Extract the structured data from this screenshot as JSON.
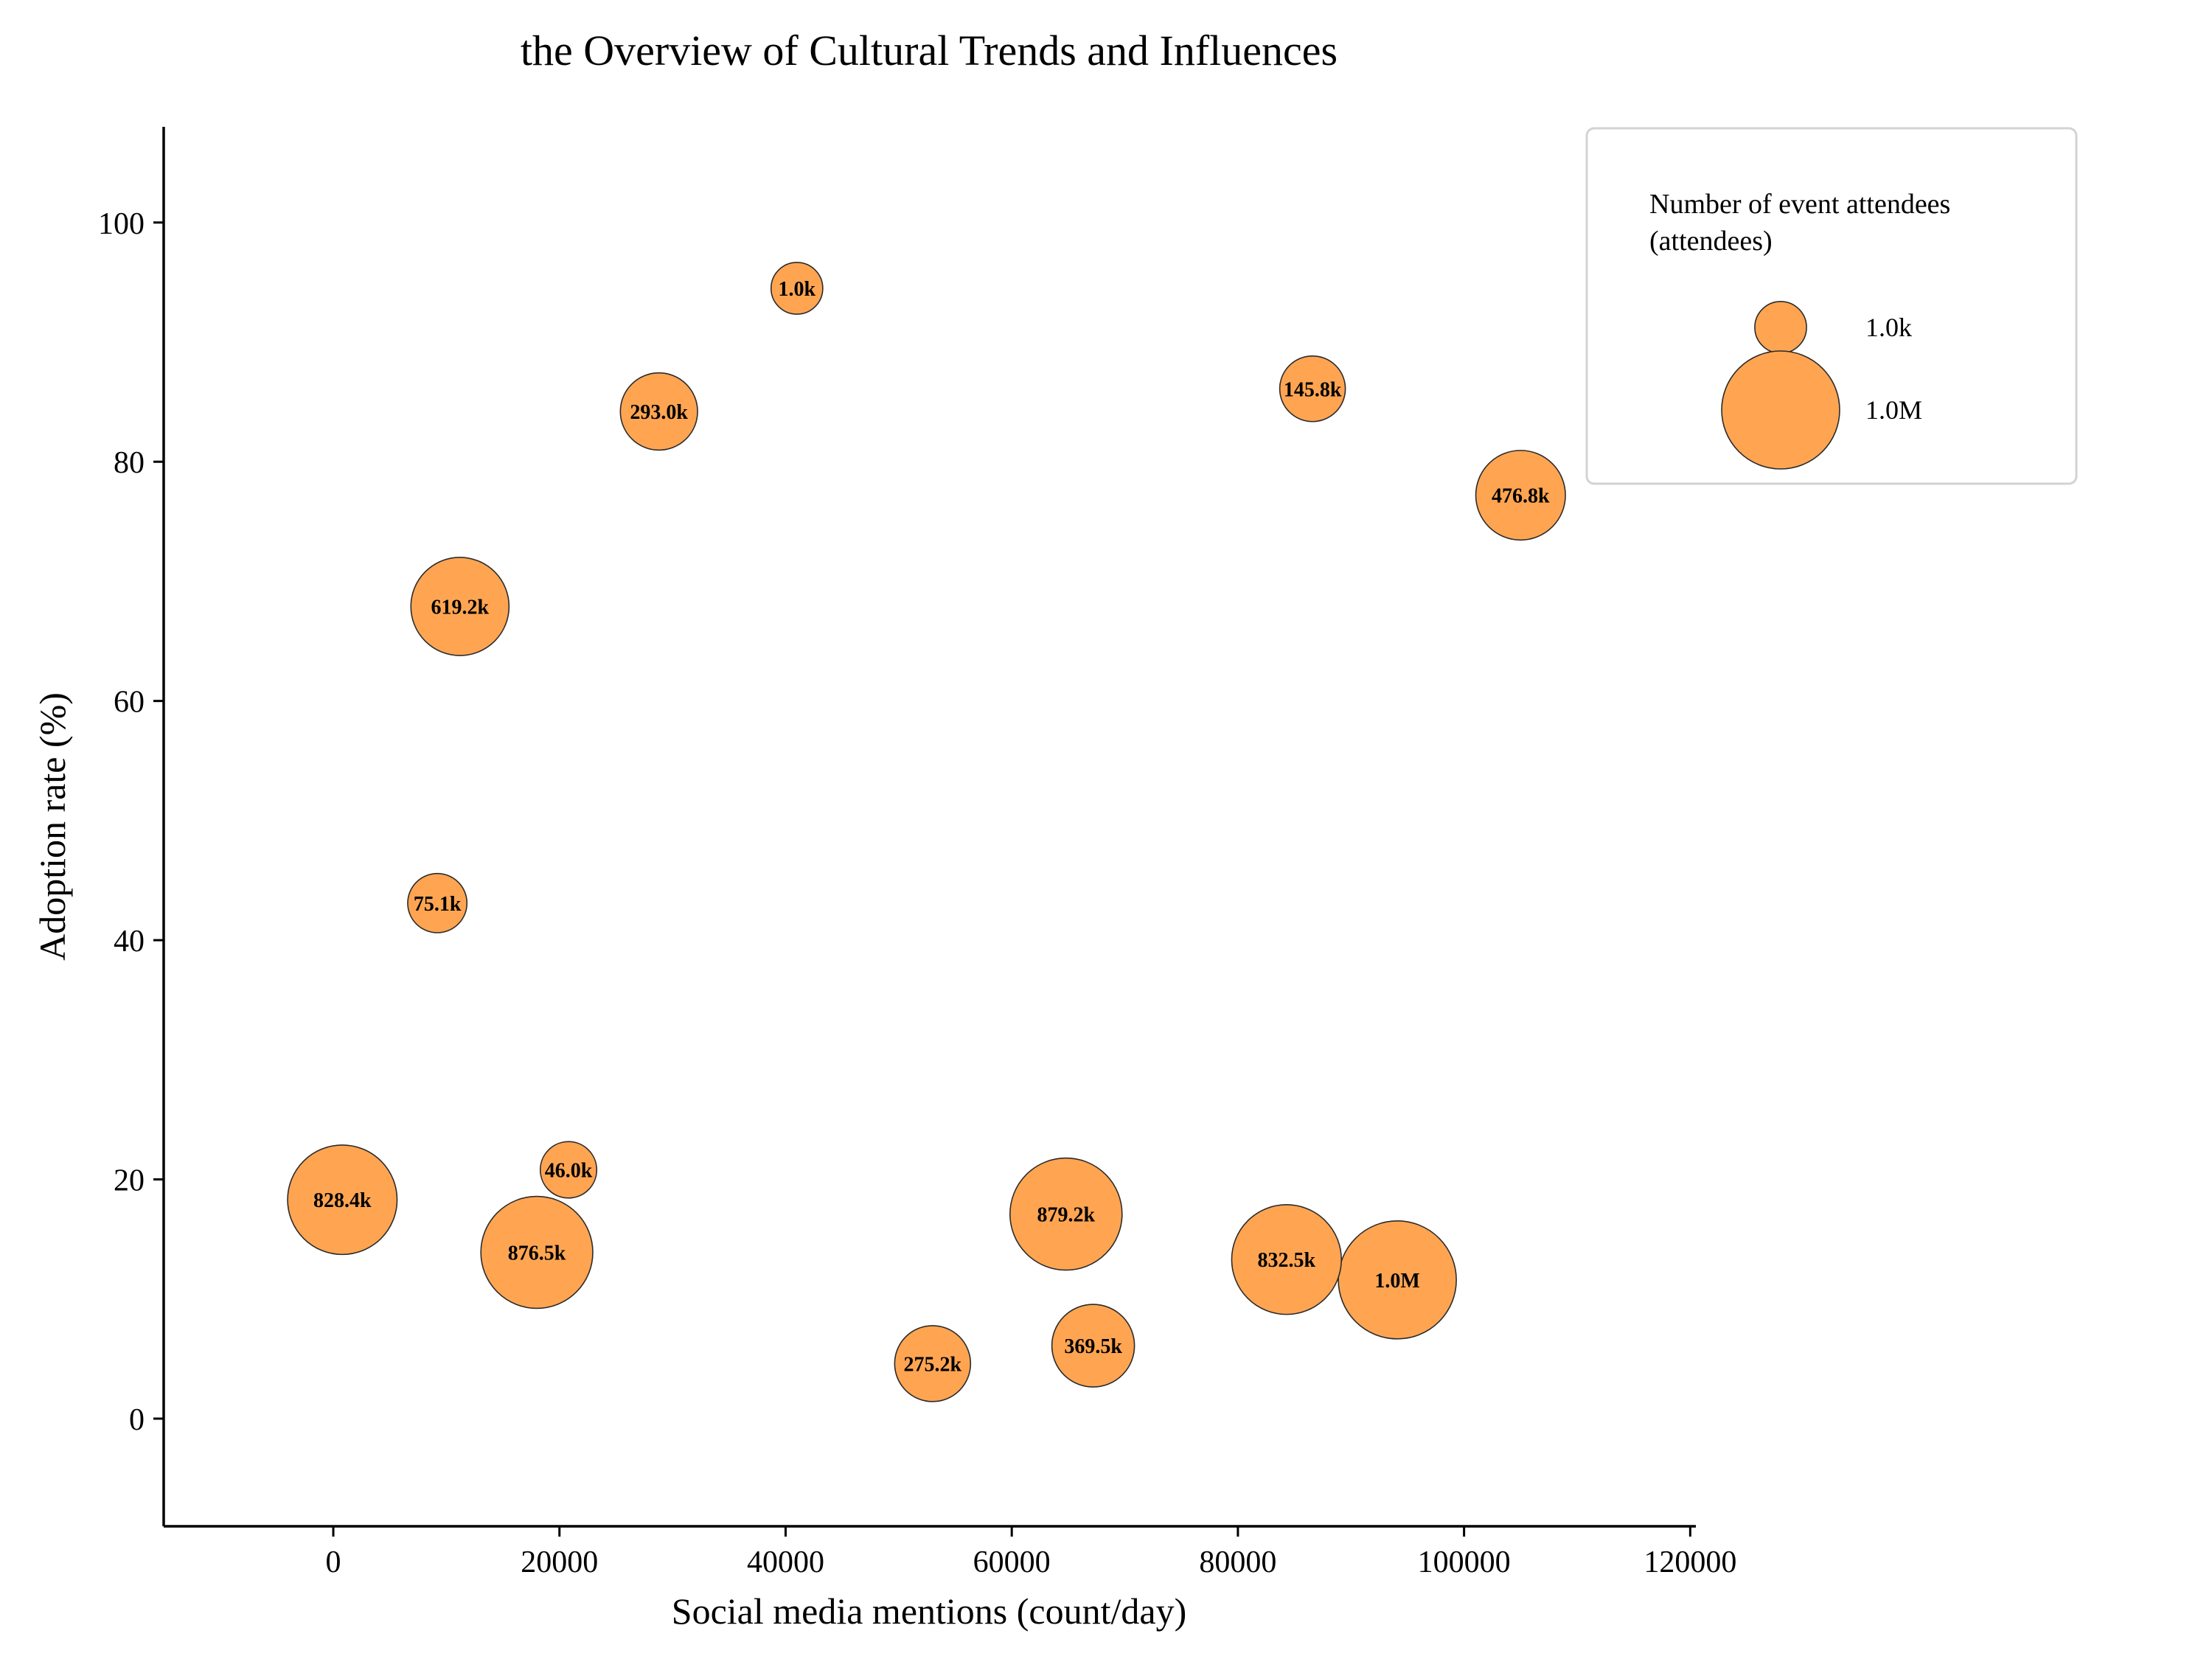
{
  "chart_data": {
    "type": "scatter",
    "title": "the Overview of Cultural Trends and Influences",
    "xlabel": "Social media mentions (count/day)",
    "ylabel": "Adoption rate (%)",
    "xlim": [
      -15000,
      120500
    ],
    "ylim": [
      -9,
      108
    ],
    "xticks": [
      0,
      20000,
      40000,
      60000,
      80000,
      100000,
      120000
    ],
    "yticks": [
      0,
      20,
      40,
      60,
      80,
      100
    ],
    "grid": false,
    "bubble_color": "#ffa552",
    "points": [
      {
        "x": 41000,
        "y": 94.5,
        "size": 1000,
        "label": "1.0k"
      },
      {
        "x": 28800,
        "y": 84.2,
        "size": 293000,
        "label": "293.0k"
      },
      {
        "x": 86600,
        "y": 86.1,
        "size": 145800,
        "label": "145.8k"
      },
      {
        "x": 105000,
        "y": 77.2,
        "size": 476800,
        "label": "476.8k"
      },
      {
        "x": 11200,
        "y": 67.9,
        "size": 619200,
        "label": "619.2k"
      },
      {
        "x": 9200,
        "y": 43.1,
        "size": 75100,
        "label": "75.1k"
      },
      {
        "x": 800,
        "y": 18.3,
        "size": 828400,
        "label": "828.4k"
      },
      {
        "x": 20800,
        "y": 20.8,
        "size": 46000,
        "label": "46.0k"
      },
      {
        "x": 18000,
        "y": 13.9,
        "size": 876500,
        "label": "876.5k"
      },
      {
        "x": 64800,
        "y": 17.1,
        "size": 879200,
        "label": "879.2k"
      },
      {
        "x": 84300,
        "y": 13.3,
        "size": 832500,
        "label": "832.5k"
      },
      {
        "x": 94100,
        "y": 11.6,
        "size": 1000000,
        "label": "1.0M"
      },
      {
        "x": 67200,
        "y": 6.1,
        "size": 369500,
        "label": "369.5k"
      },
      {
        "x": 53000,
        "y": 4.6,
        "size": 275200,
        "label": "275.2k"
      }
    ],
    "legend": {
      "title_line1": "Number of event attendees",
      "title_line2": "(attendees)",
      "placement": "top-right",
      "entries": [
        {
          "label": "1.0k",
          "size": 1000
        },
        {
          "label": "1.0M",
          "size": 1000000
        }
      ]
    }
  }
}
